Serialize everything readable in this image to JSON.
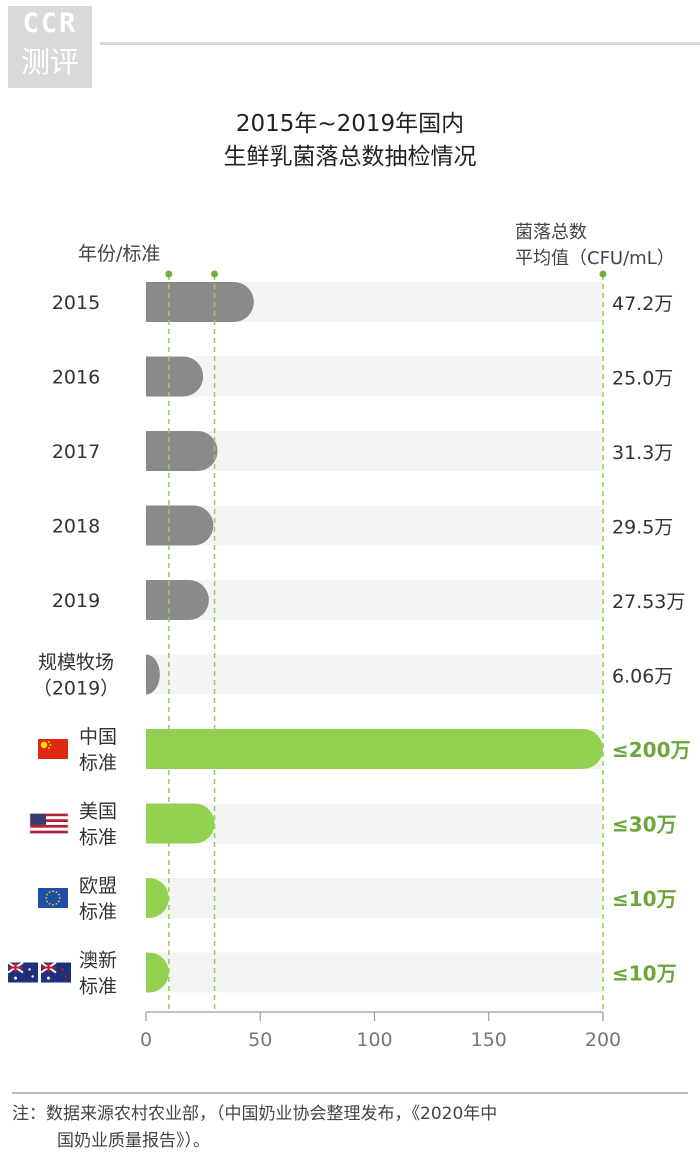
{
  "logo": {
    "line1": "CCR",
    "line2": "测评"
  },
  "title_line1": "2015年~2019年国内",
  "title_line2": "生鲜乳菌落总数抽检情况",
  "category_header": "年份/标准",
  "value_header_line1": "菌落总数",
  "value_header_line2": "平均值（CFU/mL）",
  "footnote_line1": "注：数据来源农村农业部，（中国奶业协会整理发布，《2020年中",
  "footnote_line2": "国奶业质量报告》）。",
  "colors": {
    "gray_bar": "#8a8a8a",
    "green_bar": "#92d050",
    "track": "#f4f4f4",
    "green_text": "#6aa63a"
  },
  "chart_data": {
    "type": "bar",
    "orientation": "horizontal",
    "title": "2015年~2019年国内 生鲜乳菌落总数抽检情况",
    "xlabel": "",
    "ylabel": "年份/标准",
    "value_label": "菌落总数平均值（CFU/mL）",
    "xlim": [
      0,
      200
    ],
    "ticks": [
      0,
      50,
      100,
      150,
      200
    ],
    "categories": [
      {
        "label": [
          "2015"
        ],
        "value": 47.2,
        "value_label": "47.2万",
        "group": "sample"
      },
      {
        "label": [
          "2016"
        ],
        "value": 25.0,
        "value_label": "25.0万",
        "group": "sample"
      },
      {
        "label": [
          "2017"
        ],
        "value": 31.3,
        "value_label": "31.3万",
        "group": "sample"
      },
      {
        "label": [
          "2018"
        ],
        "value": 29.5,
        "value_label": "29.5万",
        "group": "sample"
      },
      {
        "label": [
          "2019"
        ],
        "value": 27.53,
        "value_label": "27.53万",
        "group": "sample"
      },
      {
        "label": [
          "规模牧场",
          "（2019）"
        ],
        "value": 6.06,
        "value_label": "6.06万",
        "group": "sample"
      },
      {
        "label": [
          "中国",
          "标准"
        ],
        "value": 200,
        "value_label": "≤200万",
        "group": "standard",
        "flag": "china-flag"
      },
      {
        "label": [
          "美国",
          "标准"
        ],
        "value": 30,
        "value_label": "≤30万",
        "group": "standard",
        "flag": "usa-flag"
      },
      {
        "label": [
          "欧盟",
          "标准"
        ],
        "value": 10,
        "value_label": "≤10万",
        "group": "standard",
        "flag": "eu-flag"
      },
      {
        "label": [
          "澳新",
          "标准"
        ],
        "value": 10,
        "value_label": "≤10万",
        "group": "standard",
        "flag": "australia-newzealand-flag"
      }
    ],
    "reference_lines": [
      10,
      30,
      200
    ],
    "grid": false,
    "legend": "none"
  }
}
